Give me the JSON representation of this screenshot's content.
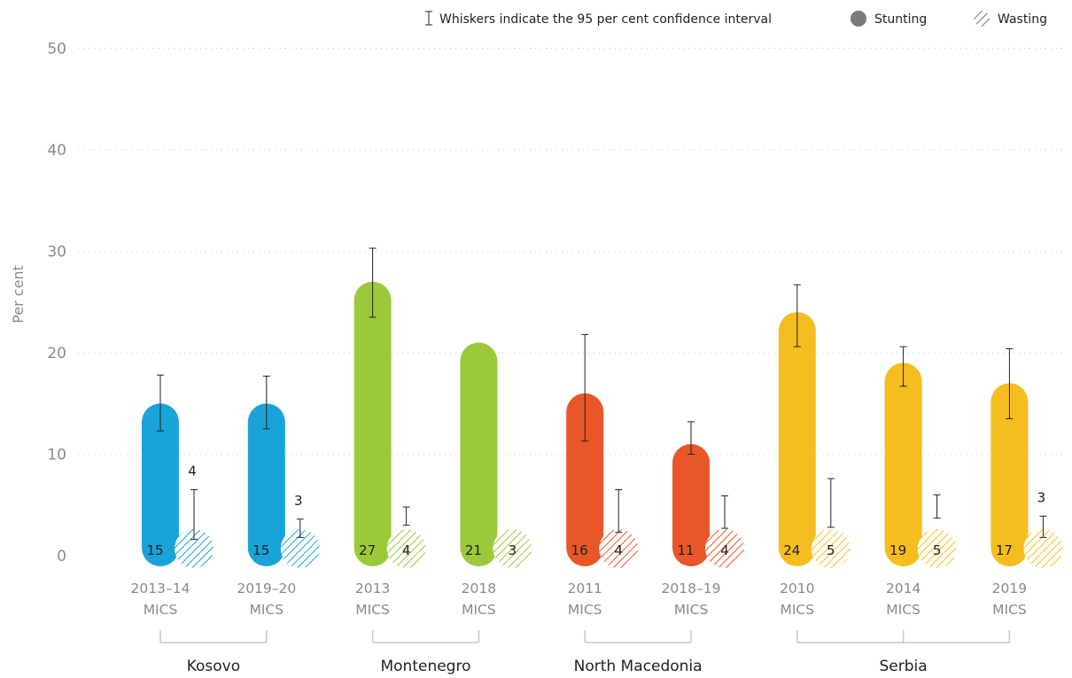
{
  "chart_data": {
    "type": "bar",
    "ylabel": "Per cent",
    "ylim": [
      0,
      50
    ],
    "yticks": [
      0,
      10,
      20,
      30,
      40,
      50
    ],
    "grid": true,
    "legend": {
      "placement": "top-right",
      "whisker_note": "Whiskers indicate the 95 per cent confidence interval",
      "entries": [
        "Stunting",
        "Wasting"
      ]
    },
    "categories": [
      {
        "year": "2013–14",
        "survey": "MICS",
        "group": "Kosovo",
        "color": "#1aa3d8",
        "stunting": 15,
        "stunting_ci": [
          12.3,
          17.8
        ],
        "wasting": 4,
        "wasting_ci": [
          1.6,
          6.5
        ],
        "wasting_label_above": true
      },
      {
        "year": "2019–20",
        "survey": "MICS",
        "group": "Kosovo",
        "color": "#1aa3d8",
        "stunting": 15,
        "stunting_ci": [
          12.5,
          17.7
        ],
        "wasting": 3,
        "wasting_ci": [
          1.8,
          3.6
        ],
        "wasting_label_above": true
      },
      {
        "year": "2013",
        "survey": "MICS",
        "group": "Montenegro",
        "color": "#9cc93b",
        "stunting": 27,
        "stunting_ci": [
          23.5,
          30.3
        ],
        "wasting": 4,
        "wasting_ci": [
          3.0,
          4.8
        ],
        "wasting_label_above": false
      },
      {
        "year": "2018",
        "survey": "MICS",
        "group": "Montenegro",
        "color": "#9cc93b",
        "stunting": 21,
        "stunting_ci": null,
        "wasting": 3,
        "wasting_ci": null,
        "wasting_label_above": false
      },
      {
        "year": "2011",
        "survey": "MICS",
        "group": "North Macedonia",
        "color": "#e8562a",
        "stunting": 16,
        "stunting_ci": [
          11.3,
          21.8
        ],
        "wasting": 4,
        "wasting_ci": [
          2.3,
          6.5
        ],
        "wasting_label_above": false
      },
      {
        "year": "2018–19",
        "survey": "MICS",
        "group": "North Macedonia",
        "color": "#e8562a",
        "stunting": 11,
        "stunting_ci": [
          10.0,
          13.2
        ],
        "wasting": 4,
        "wasting_ci": [
          2.7,
          5.9
        ],
        "wasting_label_above": false
      },
      {
        "year": "2010",
        "survey": "MICS",
        "group": "Serbia",
        "color": "#f5bd1f",
        "stunting": 24,
        "stunting_ci": [
          20.6,
          26.7
        ],
        "wasting": 5,
        "wasting_ci": [
          2.8,
          7.6
        ],
        "wasting_label_above": false
      },
      {
        "year": "2014",
        "survey": "MICS",
        "group": "Serbia",
        "color": "#f5bd1f",
        "stunting": 19,
        "stunting_ci": [
          16.7,
          20.6
        ],
        "wasting": 5,
        "wasting_ci": [
          3.7,
          6.0
        ],
        "wasting_label_above": false
      },
      {
        "year": "2019",
        "survey": "MICS",
        "group": "Serbia",
        "color": "#f5bd1f",
        "stunting": 17,
        "stunting_ci": [
          13.5,
          20.4
        ],
        "wasting": 3,
        "wasting_ci": [
          1.8,
          3.9
        ],
        "wasting_label_above": true
      }
    ],
    "groups": [
      {
        "name": "Kosovo",
        "members": [
          0,
          1
        ]
      },
      {
        "name": "Montenegro",
        "members": [
          2,
          3
        ]
      },
      {
        "name": "North Macedonia",
        "members": [
          4,
          5
        ]
      },
      {
        "name": "Serbia",
        "members": [
          6,
          7,
          8
        ]
      }
    ],
    "colors": {
      "grid": "#c8c8c8",
      "whisker": "#222222",
      "bracket": "#c8c8c8",
      "legend_dot": "#7a7a7a"
    }
  }
}
